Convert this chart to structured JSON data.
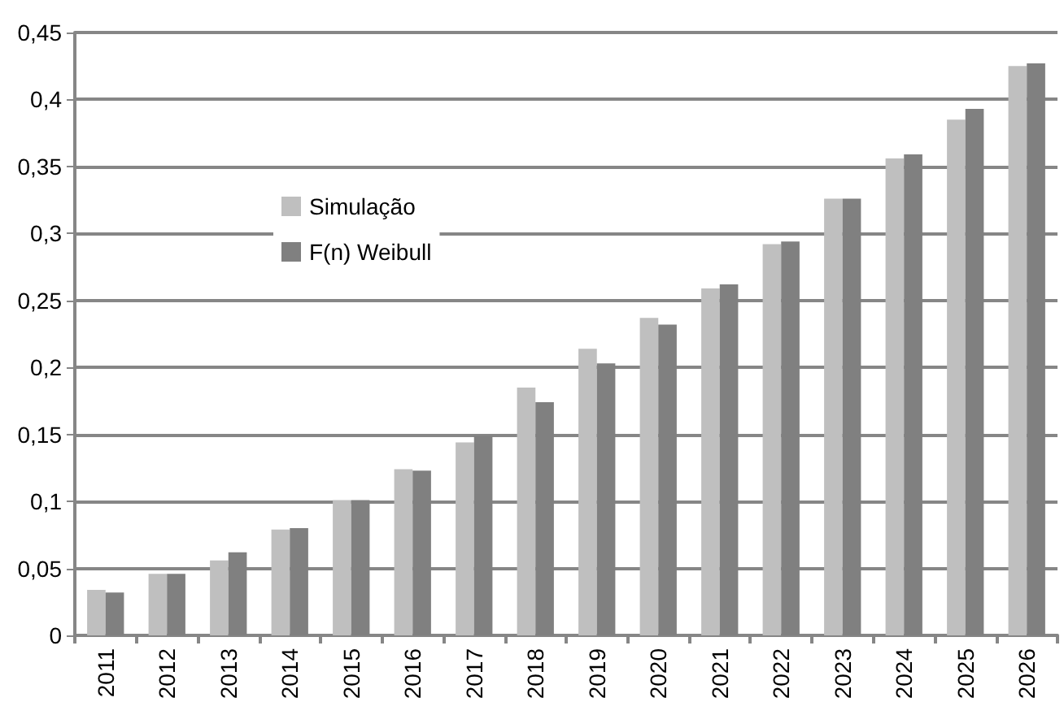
{
  "chart_data": {
    "type": "bar",
    "categories": [
      "2011",
      "2012",
      "2013",
      "2014",
      "2015",
      "2016",
      "2017",
      "2018",
      "2019",
      "2020",
      "2021",
      "2022",
      "2023",
      "2024",
      "2025",
      "2026"
    ],
    "series": [
      {
        "name": "Simulação",
        "color": "#bfbfbf",
        "values": [
          0.034,
          0.046,
          0.056,
          0.079,
          0.101,
          0.124,
          0.144,
          0.185,
          0.214,
          0.237,
          0.259,
          0.292,
          0.326,
          0.356,
          0.385,
          0.425
        ]
      },
      {
        "name": "F(n) Weibull",
        "color": "#808080",
        "values": [
          0.032,
          0.046,
          0.062,
          0.08,
          0.101,
          0.123,
          0.149,
          0.174,
          0.203,
          0.232,
          0.262,
          0.294,
          0.326,
          0.359,
          0.393,
          0.427
        ]
      }
    ],
    "ylim": [
      0,
      0.45
    ],
    "yticks": [
      {
        "value": 0,
        "label": "0"
      },
      {
        "value": 0.05,
        "label": "0,05"
      },
      {
        "value": 0.1,
        "label": "0,1"
      },
      {
        "value": 0.15,
        "label": "0,15"
      },
      {
        "value": 0.2,
        "label": "0,2"
      },
      {
        "value": 0.25,
        "label": "0,25"
      },
      {
        "value": 0.3,
        "label": "0,3"
      },
      {
        "value": 0.35,
        "label": "0,35"
      },
      {
        "value": 0.4,
        "label": "0,4"
      },
      {
        "value": 0.45,
        "label": "0,45"
      }
    ],
    "grid": "y",
    "legend": "top left"
  }
}
